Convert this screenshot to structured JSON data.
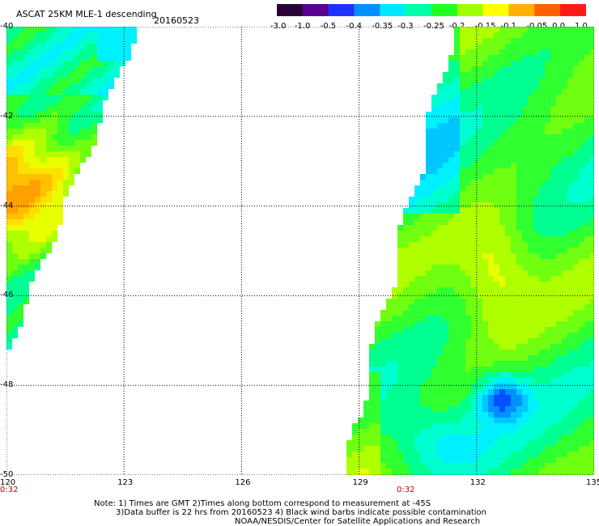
{
  "header": {
    "title": "ASCAT 25KM MLE-1 descending",
    "date": "20160523"
  },
  "colorbar": {
    "labels": [
      "-3.0",
      "-1.0",
      "-0.5",
      "-0.4",
      "-0.35",
      "-0.3",
      "-0.25",
      "-0.2",
      "-0.15",
      "-0.1",
      "-0.05",
      "0.0",
      "1.0"
    ],
    "colors": [
      "#2a0038",
      "#5a0090",
      "#2030ff",
      "#0090ff",
      "#00e8ff",
      "#00ffa8",
      "#20ff20",
      "#a0ff00",
      "#ffff00",
      "#ffb000",
      "#ff6000",
      "#ff1a1a"
    ]
  },
  "map": {
    "latitudes": [
      "-40",
      "-42",
      "-44",
      "-46",
      "-48",
      "-50"
    ],
    "longitudes": [
      "120",
      "123",
      "126",
      "129",
      "132",
      "135"
    ],
    "lon_range": [
      120,
      135
    ],
    "lat_range": [
      -50,
      -40
    ],
    "gridlines": true
  },
  "time_labels": [
    "0:32",
    "0:32"
  ],
  "notes": [
    "Note: 1) Times are GMT 2)Times along bottom correspond to measurement at -45S",
    "3)Data buffer is 22 hrs from 20160523 4) Black wind barbs indicate possible contamination",
    "NOAA/NESDIS/Center for Satellite Applications and Research"
  ]
}
